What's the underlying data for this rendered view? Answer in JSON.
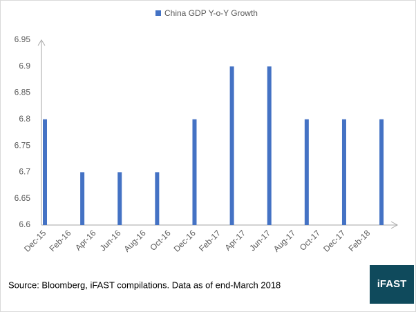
{
  "chart_data": {
    "type": "bar",
    "series": [
      {
        "name": "China GDP Y-o-Y Growth",
        "color": "#4472c4",
        "values": [
          6.8,
          null,
          null,
          6.7,
          null,
          null,
          6.7,
          null,
          null,
          6.7,
          null,
          null,
          6.8,
          null,
          null,
          6.9,
          null,
          null,
          6.9,
          null,
          null,
          6.8,
          null,
          null,
          6.8,
          null,
          null,
          6.8
        ]
      }
    ],
    "categories": [
      "Dec-15",
      null,
      "Feb-16",
      null,
      "Apr-16",
      null,
      "Jun-16",
      null,
      "Aug-16",
      null,
      "Oct-16",
      null,
      "Dec-16",
      null,
      "Feb-17",
      null,
      "Apr-17",
      null,
      "Jun-17",
      null,
      "Aug-17",
      null,
      "Oct-17",
      null,
      "Dec-17",
      null,
      "Feb-18",
      null
    ],
    "ylim": [
      6.6,
      6.95
    ],
    "yticks": [
      6.6,
      6.65,
      6.7,
      6.75,
      6.8,
      6.85,
      6.9,
      6.95
    ],
    "legend": "top"
  },
  "footer": {
    "source": "Source: Bloomberg, iFAST compilations. Data as of end-March 2018",
    "logo": "iFAST"
  }
}
